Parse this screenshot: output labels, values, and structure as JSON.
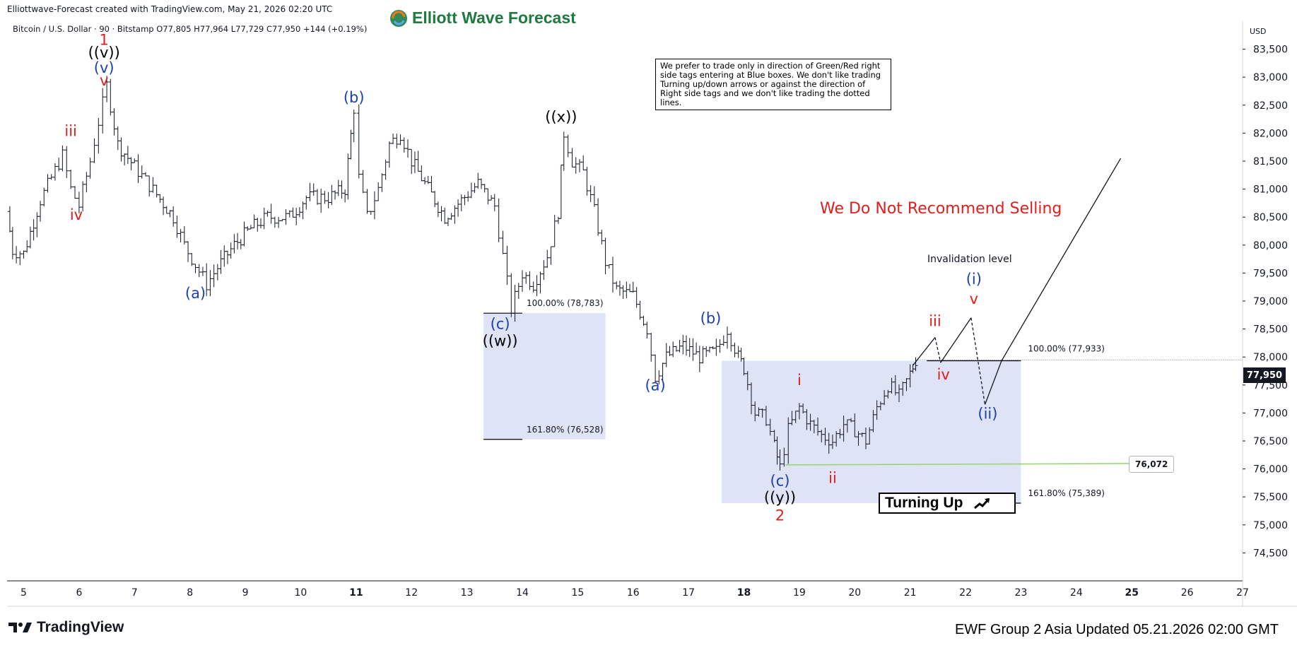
{
  "header": {
    "caption": "Elliottwave-Forecast created with TradingView.com, May 21, 2026 02:20 UTC",
    "symbol": "Bitcoin / U.S. Dollar · 90 · Bitstamp  O77,805  H77,964  L77,729  C77,950  +144 (+0.19%)"
  },
  "brand": {
    "logo_text": "Elliott Wave Forecast",
    "logo_icon": "globe-swirl-icon",
    "color": "#1f7a3f"
  },
  "footer": {
    "left": "TradingView",
    "left_icon": "tradingview-logo-icon",
    "right": "EWF Group 2 Asia Updated 05.21.2026 02:00 GMT"
  },
  "annotations": {
    "note": "We prefer to trade only in direction of Green/Red right side tags entering at Blue boxes. We don't like trading Turning up/down arrows or against the direction of Right side tags and we don't like trading the dotted lines.",
    "recommendation": "We Do Not Recommend Selling",
    "invalidation": "Invalidation level",
    "invalidation_value": "76,072",
    "invalidation_price": 76072,
    "turning": "Turning Up",
    "turning_icon": "arrow-up-right-icon",
    "box1_top": "100.00% (78,783)",
    "box1_bottom": "161.80% (76,528)",
    "box2_top": "100.00% (77,933)",
    "box2_bottom": "161.80% (75,389)"
  },
  "colors": {
    "box": "#dfe3f6",
    "wave_blue": "#1e40af",
    "wave_red": "#e11d1d",
    "wave_black": "#000000",
    "invalidation_line": "#8fd66b"
  },
  "chart_data": {
    "type": "ohlc",
    "currency": "USD",
    "current_price": "77,950",
    "ylim": [
      74000,
      84000
    ],
    "y_ticks": [
      74500,
      75000,
      75500,
      76000,
      76500,
      77000,
      77500,
      78000,
      78500,
      79000,
      79500,
      80000,
      80500,
      81000,
      81500,
      82000,
      82500,
      83000,
      83500
    ],
    "y_tick_labels": [
      "74,500",
      "75,000",
      "75,500",
      "76,000",
      "76,500",
      "77,000",
      "77,500",
      "78,000",
      "78,500",
      "79,000",
      "79,500",
      "80,000",
      "80,500",
      "81,000",
      "81,500",
      "82,000",
      "82,500",
      "83,000",
      "83,500"
    ],
    "xlim": [
      4.7,
      27
    ],
    "x_ticks": [
      5,
      6,
      7,
      8,
      9,
      10,
      11,
      12,
      13,
      14,
      15,
      16,
      17,
      18,
      19,
      20,
      21,
      22,
      23,
      24,
      25,
      26,
      27
    ],
    "x_tick_labels": [
      "5",
      "6",
      "7",
      "8",
      "9",
      "10",
      "11",
      "12",
      "13",
      "14",
      "15",
      "16",
      "17",
      "18",
      "19",
      "20",
      "21",
      "22",
      "23",
      "24",
      "25",
      "26",
      "27"
    ],
    "bold_x_ticks": [
      "11",
      "18",
      "25"
    ],
    "price_path": [
      [
        4.7,
        80600
      ],
      [
        4.8,
        79900
      ],
      [
        5.0,
        79850
      ],
      [
        5.3,
        80800
      ],
      [
        5.7,
        81600
      ],
      [
        5.85,
        81000
      ],
      [
        6.0,
        80700
      ],
      [
        6.2,
        81500
      ],
      [
        6.35,
        82200
      ],
      [
        6.5,
        82850
      ],
      [
        6.7,
        81800
      ],
      [
        7.0,
        81400
      ],
      [
        7.4,
        80900
      ],
      [
        7.7,
        80500
      ],
      [
        7.9,
        80000
      ],
      [
        8.1,
        79650
      ],
      [
        8.3,
        79300
      ],
      [
        8.5,
        79600
      ],
      [
        8.8,
        80000
      ],
      [
        9.1,
        80300
      ],
      [
        9.4,
        80500
      ],
      [
        9.8,
        80500
      ],
      [
        10.1,
        80850
      ],
      [
        10.5,
        80850
      ],
      [
        10.8,
        81000
      ],
      [
        10.96,
        82450
      ],
      [
        11.05,
        81200
      ],
      [
        11.2,
        80500
      ],
      [
        11.4,
        81000
      ],
      [
        11.6,
        81800
      ],
      [
        11.8,
        82000
      ],
      [
        12.0,
        81500
      ],
      [
        12.3,
        81000
      ],
      [
        12.6,
        80500
      ],
      [
        12.9,
        80800
      ],
      [
        13.2,
        81100
      ],
      [
        13.5,
        80700
      ],
      [
        13.65,
        79800
      ],
      [
        13.8,
        78850
      ],
      [
        14.0,
        79500
      ],
      [
        14.2,
        79300
      ],
      [
        14.45,
        79800
      ],
      [
        14.65,
        80600
      ],
      [
        14.75,
        82000
      ],
      [
        14.9,
        81500
      ],
      [
        15.1,
        81300
      ],
      [
        15.3,
        80600
      ],
      [
        15.5,
        79700
      ],
      [
        15.7,
        79200
      ],
      [
        16.0,
        79100
      ],
      [
        16.25,
        78500
      ],
      [
        16.4,
        77650
      ],
      [
        16.6,
        78000
      ],
      [
        16.9,
        78200
      ],
      [
        17.2,
        78000
      ],
      [
        17.5,
        78100
      ],
      [
        17.7,
        78500
      ],
      [
        17.9,
        78000
      ],
      [
        18.0,
        77800
      ],
      [
        18.2,
        77000
      ],
      [
        18.4,
        76900
      ],
      [
        18.55,
        76400
      ],
      [
        18.65,
        76020
      ],
      [
        18.8,
        76700
      ],
      [
        19.0,
        77100
      ],
      [
        19.2,
        76800
      ],
      [
        19.4,
        76600
      ],
      [
        19.6,
        76500
      ],
      [
        19.8,
        76800
      ],
      [
        20.0,
        76700
      ],
      [
        20.2,
        76500
      ],
      [
        20.4,
        77100
      ],
      [
        20.6,
        77500
      ],
      [
        20.8,
        77300
      ],
      [
        21.0,
        77700
      ],
      [
        21.1,
        77950
      ]
    ],
    "projection": [
      [
        21.05,
        77850
      ],
      [
        21.45,
        78350
      ],
      [
        21.55,
        77900
      ],
      [
        22.1,
        78700
      ],
      [
        22.35,
        77150
      ],
      [
        22.65,
        77933
      ],
      [
        24.8,
        81550
      ]
    ],
    "projection_dashed_segments": [
      1,
      3
    ],
    "boxes": [
      {
        "x0": 13.3,
        "x1": 15.5,
        "y_top": 78783,
        "y_bottom": 76528
      },
      {
        "x0": 17.6,
        "x1": 23.0,
        "y_top": 77933,
        "y_bottom": 75389
      }
    ],
    "box_edges": [
      {
        "x0": 13.3,
        "x1": 14.0,
        "y": 78783
      },
      {
        "x0": 13.3,
        "x1": 14.0,
        "y": 76528
      },
      {
        "x0": 21.3,
        "x1": 23.0,
        "y": 77933
      },
      {
        "x0": 21.3,
        "x1": 23.0,
        "y": 75389
      }
    ],
    "wave_labels": [
      {
        "t": "1",
        "x": 6.45,
        "y": 83580,
        "color": "red"
      },
      {
        "t": "((v))",
        "x": 6.45,
        "y": 83350,
        "color": "black"
      },
      {
        "t": "(v)",
        "x": 6.45,
        "y": 83080,
        "color": "blue"
      },
      {
        "t": "v",
        "x": 6.45,
        "y": 82850,
        "color": "red"
      },
      {
        "t": "iii",
        "x": 5.85,
        "y": 81950,
        "color": "red"
      },
      {
        "t": "iv",
        "x": 5.95,
        "y": 80450,
        "color": "red"
      },
      {
        "t": "(a)",
        "x": 8.1,
        "y": 79050,
        "color": "blue"
      },
      {
        "t": "(b)",
        "x": 10.96,
        "y": 82550,
        "color": "blue"
      },
      {
        "t": "(c)",
        "x": 13.6,
        "y": 78500,
        "color": "blue"
      },
      {
        "t": "((w))",
        "x": 13.6,
        "y": 78200,
        "color": "black"
      },
      {
        "t": "((x))",
        "x": 14.7,
        "y": 82200,
        "color": "black"
      },
      {
        "t": "(a)",
        "x": 16.4,
        "y": 77400,
        "color": "blue"
      },
      {
        "t": "(b)",
        "x": 17.4,
        "y": 78600,
        "color": "blue"
      },
      {
        "t": "(c)",
        "x": 18.65,
        "y": 75700,
        "color": "blue"
      },
      {
        "t": "((y))",
        "x": 18.65,
        "y": 75400,
        "color": "black"
      },
      {
        "t": "2",
        "x": 18.65,
        "y": 75080,
        "color": "red"
      },
      {
        "t": "i",
        "x": 19.0,
        "y": 77500,
        "color": "red"
      },
      {
        "t": "ii",
        "x": 19.6,
        "y": 75750,
        "color": "red"
      },
      {
        "t": "iii",
        "x": 21.45,
        "y": 78550,
        "color": "red"
      },
      {
        "t": "iv",
        "x": 21.6,
        "y": 77600,
        "color": "red"
      },
      {
        "t": "(i)",
        "x": 22.15,
        "y": 79300,
        "color": "blue"
      },
      {
        "t": "v",
        "x": 22.15,
        "y": 78950,
        "color": "red"
      },
      {
        "t": "(ii)",
        "x": 22.4,
        "y": 76900,
        "color": "blue"
      }
    ]
  }
}
